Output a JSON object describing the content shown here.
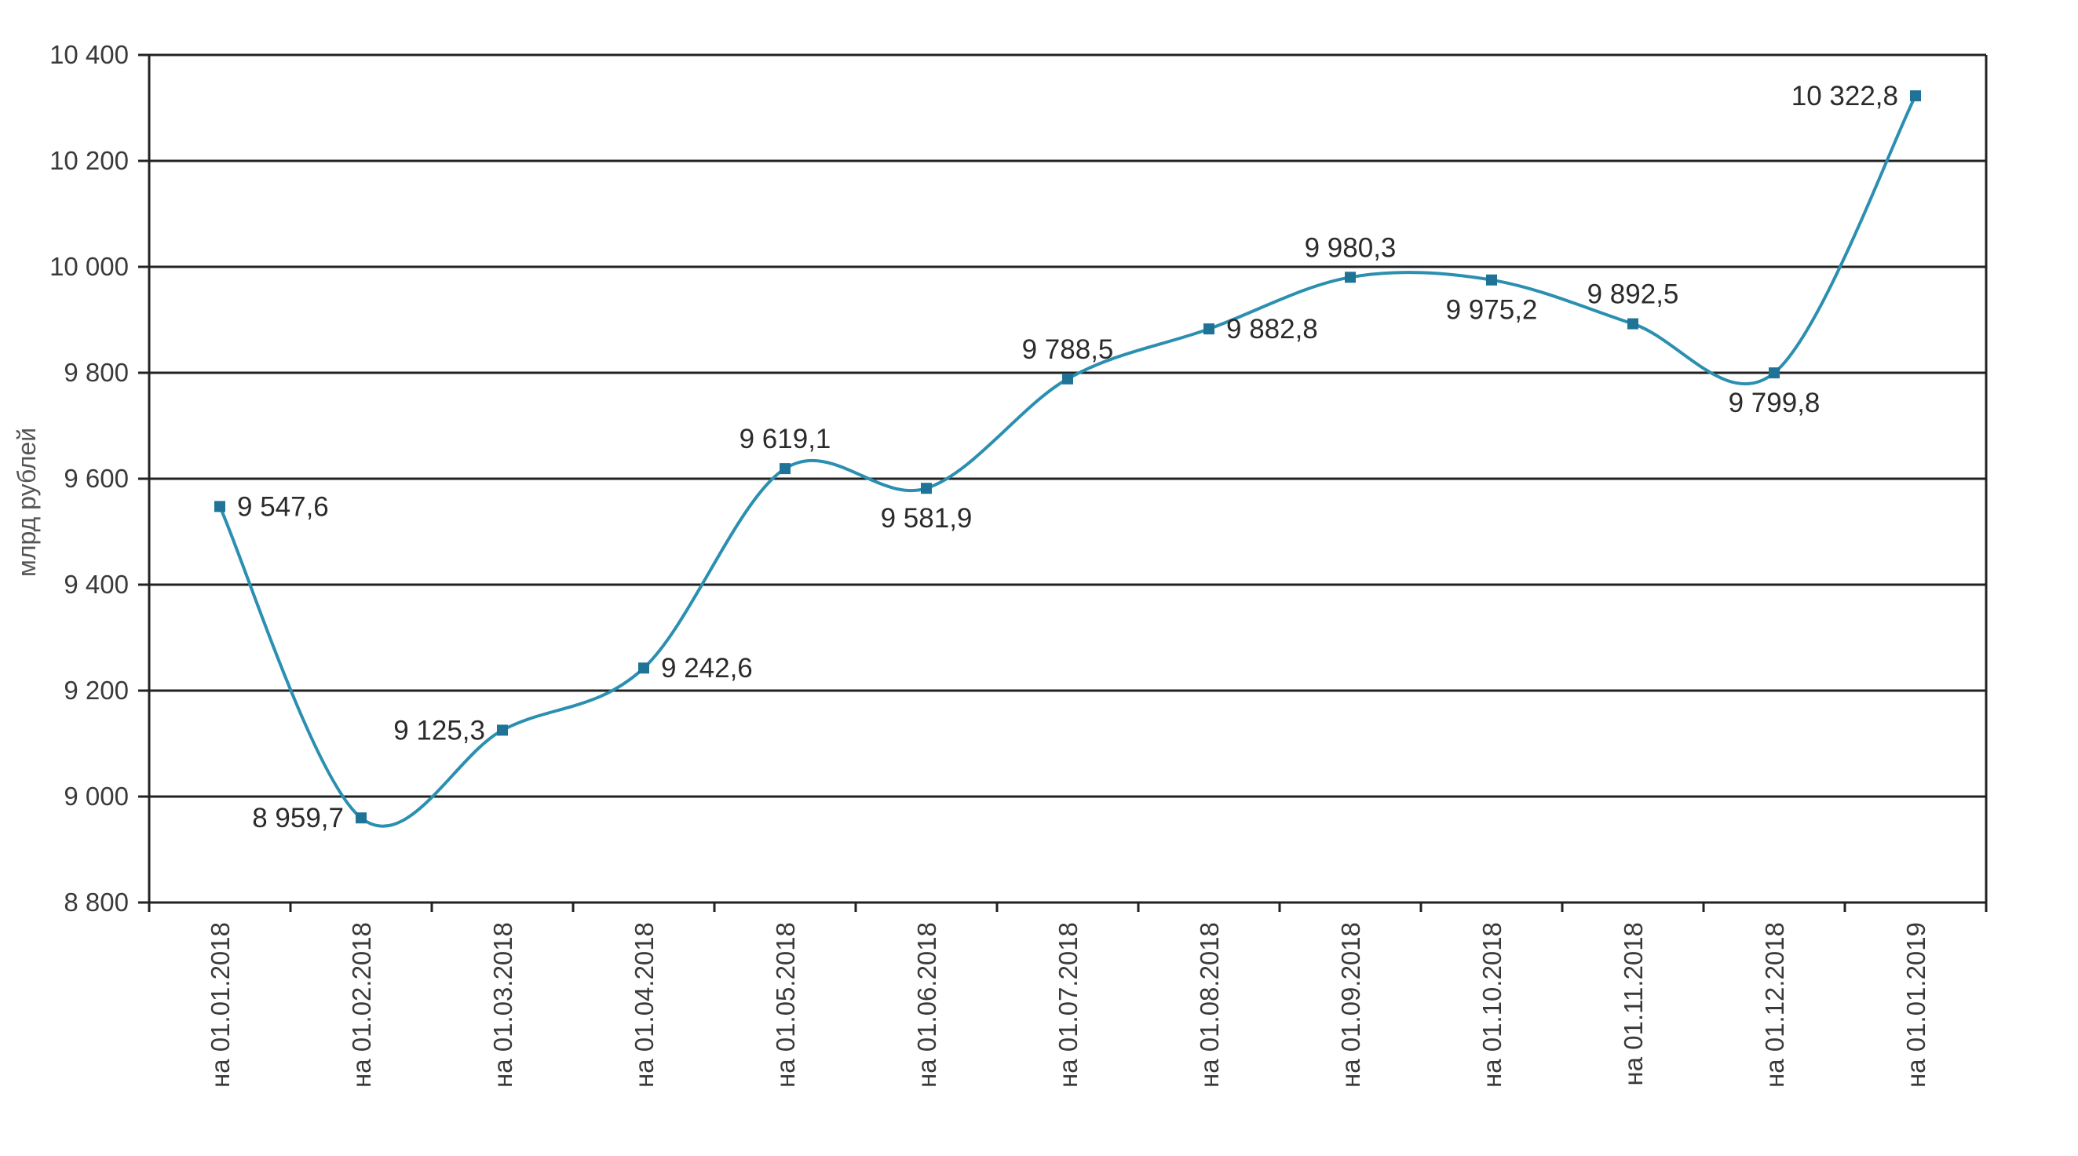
{
  "chart_data": {
    "type": "line",
    "title": "",
    "xlabel": "",
    "ylabel": "млрд рублей",
    "ylim": [
      8800,
      10400
    ],
    "yticks": [
      8800,
      9000,
      9200,
      9400,
      9600,
      9800,
      10000,
      10200,
      10400
    ],
    "ytick_labels": [
      "8 800",
      "9 000",
      "9 200",
      "9 400",
      "9 600",
      "9 800",
      "10 000",
      "10 200",
      "10 400"
    ],
    "grid": true,
    "legend": "none",
    "categories": [
      "на 01.01.2018",
      "на 01.02.2018",
      "на 01.03.2018",
      "на 01.04.2018",
      "на 01.05.2018",
      "на 01.06.2018",
      "на  01.07.2018",
      "на 01.08.2018",
      "на 01.09.2018",
      "на 01.10.2018",
      "на 01.11.2018",
      "на 01.12.2018",
      "на 01.01.2019"
    ],
    "series": [
      {
        "values": [
          9547.6,
          8959.7,
          9125.3,
          9242.6,
          9619.1,
          9581.9,
          9788.5,
          9882.8,
          9980.3,
          9975.2,
          9892.5,
          9799.8,
          10322.8
        ],
        "labels": [
          "9 547,6",
          "8 959,7",
          "9 125,3",
          "9 242,6",
          "9 619,1",
          "9 581,9",
          "9 788,5",
          "9 882,8",
          "9 980,3",
          "9 975,2",
          "9 892,5",
          "9 799,8",
          "10 322,8"
        ],
        "label_positions": [
          "right",
          "left",
          "left",
          "right",
          "above",
          "below",
          "above",
          "right",
          "above",
          "below",
          "above",
          "below",
          "left"
        ]
      }
    ],
    "colors": {
      "line": "#2a8fb0",
      "marker": "#1f7396",
      "grid": "#222222",
      "axis": "#222222"
    }
  }
}
